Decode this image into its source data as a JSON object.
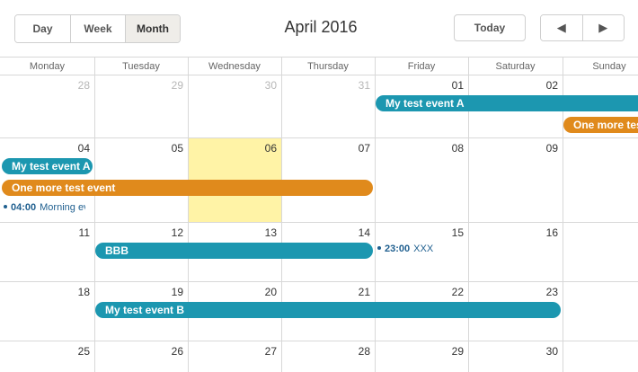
{
  "toolbar": {
    "views": [
      "Day",
      "Week",
      "Month"
    ],
    "active_view": "Month",
    "title": "April 2016",
    "today_label": "Today",
    "prev_symbol": "◀",
    "next_symbol": "▶"
  },
  "weekdays": [
    "Monday",
    "Tuesday",
    "Wednesday",
    "Thursday",
    "Friday",
    "Saturday",
    "Sunday"
  ],
  "weeks": [
    [
      "28",
      "29",
      "30",
      "31",
      "01",
      "02",
      ""
    ],
    [
      "04",
      "05",
      "06",
      "07",
      "08",
      "09",
      ""
    ],
    [
      "11",
      "12",
      "13",
      "14",
      "15",
      "16",
      ""
    ],
    [
      "18",
      "19",
      "20",
      "21",
      "22",
      "23",
      ""
    ],
    [
      "25",
      "26",
      "27",
      "28",
      "29",
      "30",
      ""
    ]
  ],
  "events": {
    "event_a_week1": "My test event A",
    "more_week1": "One more test event",
    "event_a_week2": "My test event A",
    "more_week2": "One more test event",
    "morning": {
      "time": "04:00",
      "title": "Morning event"
    },
    "bbb": "BBB",
    "xxx": {
      "time": "23:00",
      "title": "XXX"
    },
    "event_b": "My test event B"
  },
  "colors": {
    "accent": "#1c97b0",
    "orange": "#e08a1c",
    "today": "#fff3a6"
  }
}
